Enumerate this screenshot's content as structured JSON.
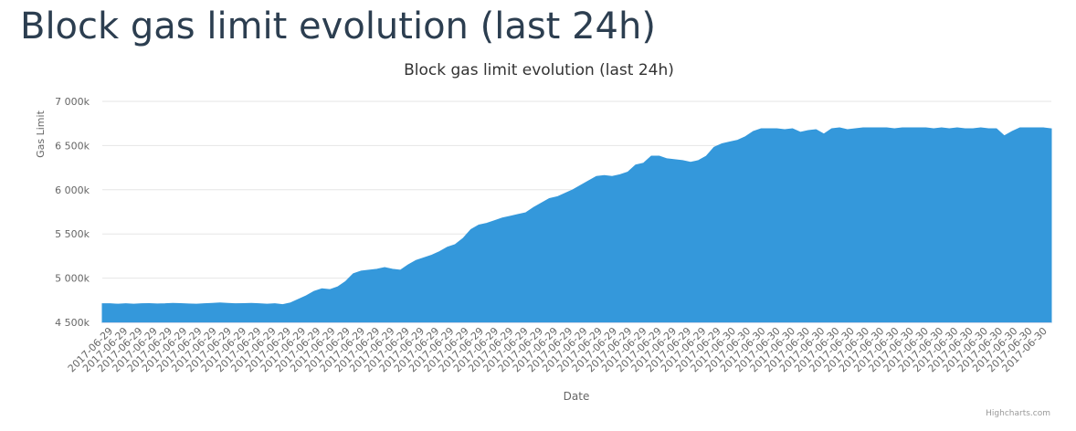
{
  "page": {
    "heading": "Block gas limit evolution (last 24h)"
  },
  "chart_data": {
    "type": "area",
    "title": "Block gas limit evolution (last 24h)",
    "xlabel": "Date",
    "ylabel": "Gas Limit",
    "credits": "Highcharts.com",
    "ylim": [
      4500000,
      7000000
    ],
    "y_ticks": [
      4500000,
      5000000,
      5500000,
      6000000,
      6500000,
      7000000
    ],
    "y_tick_labels": [
      "4 500k",
      "5 000k",
      "5 500k",
      "6 000k",
      "6 500k",
      "7 000k"
    ],
    "x_tick_labels": [
      "2017-06-29",
      "2017-06-29",
      "2017-06-29",
      "2017-06-29",
      "2017-06-29",
      "2017-06-29",
      "2017-06-29",
      "2017-06-29",
      "2017-06-29",
      "2017-06-29",
      "2017-06-29",
      "2017-06-29",
      "2017-06-29",
      "2017-06-29",
      "2017-06-29",
      "2017-06-29",
      "2017-06-29",
      "2017-06-29",
      "2017-06-29",
      "2017-06-29",
      "2017-06-29",
      "2017-06-29",
      "2017-06-29",
      "2017-06-29",
      "2017-06-29",
      "2017-06-29",
      "2017-06-29",
      "2017-06-29",
      "2017-06-29",
      "2017-06-29",
      "2017-06-29",
      "2017-06-29",
      "2017-06-29",
      "2017-06-29",
      "2017-06-29",
      "2017-06-29",
      "2017-06-29",
      "2017-06-29",
      "2017-06-29",
      "2017-06-29",
      "2017-06-29",
      "2017-06-29",
      "2017-06-30",
      "2017-06-30",
      "2017-06-30",
      "2017-06-30",
      "2017-06-30",
      "2017-06-30",
      "2017-06-30",
      "2017-06-30",
      "2017-06-30",
      "2017-06-30",
      "2017-06-30",
      "2017-06-30",
      "2017-06-30",
      "2017-06-30",
      "2017-06-30",
      "2017-06-30",
      "2017-06-30",
      "2017-06-30",
      "2017-06-30",
      "2017-06-30",
      "2017-06-30",
      "2017-06-30"
    ],
    "grid": true,
    "legend": "none",
    "series": [
      {
        "color": "#3498db",
        "values": [
          4710000,
          4710000,
          4705000,
          4710000,
          4705000,
          4710000,
          4712000,
          4708000,
          4710000,
          4715000,
          4712000,
          4708000,
          4705000,
          4710000,
          4715000,
          4720000,
          4715000,
          4710000,
          4712000,
          4715000,
          4710000,
          4705000,
          4710000,
          4700000,
          4720000,
          4760000,
          4800000,
          4850000,
          4880000,
          4870000,
          4900000,
          4960000,
          5050000,
          5080000,
          5090000,
          5100000,
          5120000,
          5100000,
          5090000,
          5150000,
          5200000,
          5230000,
          5260000,
          5300000,
          5350000,
          5380000,
          5450000,
          5550000,
          5600000,
          5620000,
          5650000,
          5680000,
          5700000,
          5720000,
          5740000,
          5800000,
          5850000,
          5900000,
          5920000,
          5960000,
          6000000,
          6050000,
          6100000,
          6150000,
          6160000,
          6150000,
          6170000,
          6200000,
          6280000,
          6300000,
          6380000,
          6380000,
          6350000,
          6340000,
          6330000,
          6310000,
          6330000,
          6380000,
          6480000,
          6520000,
          6540000,
          6560000,
          6600000,
          6660000,
          6690000,
          6690000,
          6690000,
          6680000,
          6690000,
          6650000,
          6670000,
          6680000,
          6630000,
          6690000,
          6700000,
          6680000,
          6690000,
          6700000,
          6700000,
          6700000,
          6700000,
          6690000,
          6700000,
          6700000,
          6700000,
          6700000,
          6690000,
          6700000,
          6690000,
          6700000,
          6690000,
          6690000,
          6700000,
          6690000,
          6690000,
          6610000,
          6660000,
          6700000,
          6700000,
          6700000,
          6700000,
          6690000
        ]
      }
    ]
  }
}
